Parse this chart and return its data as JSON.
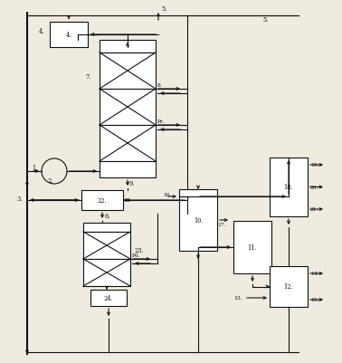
{
  "bg_color": "#f0ebe0",
  "line_color": "#111111",
  "box_color": "#ffffff",
  "lw": 0.8,
  "lw_thick": 1.5,
  "fs_label": 5.5,
  "fs_small": 4.8
}
